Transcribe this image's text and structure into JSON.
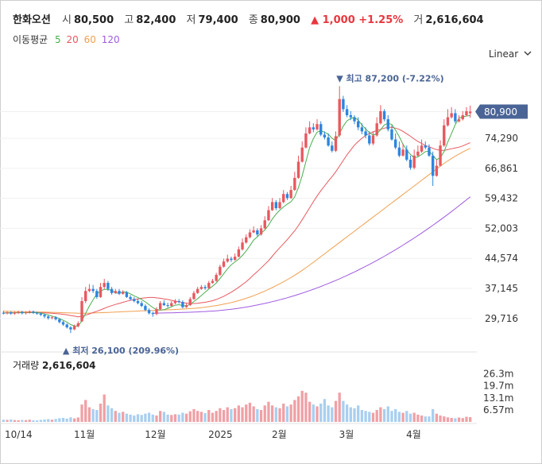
{
  "header": {
    "name": "한화오션",
    "open_label": "시",
    "open": "80,500",
    "high_label": "고",
    "high": "82,400",
    "low_label": "저",
    "low": "79,400",
    "close_label": "종",
    "close": "80,900",
    "change": "▲ 1,000 +1.25%",
    "volume_label": "거",
    "volume": "2,616,604"
  },
  "ma_legend": {
    "label": "이동평균",
    "items": [
      {
        "period": "5",
        "color": "#4caf50"
      },
      {
        "period": "20",
        "color": "#e8585f"
      },
      {
        "period": "60",
        "color": "#f0a050"
      },
      {
        "period": "120",
        "color": "#a05ce0"
      }
    ]
  },
  "scale_button": {
    "label": "Linear",
    "icon": "chevron-down-icon"
  },
  "volume_panel": {
    "label": "거래량",
    "value": "2,616,604"
  },
  "colors": {
    "up": "#e8585f",
    "down": "#2c85e0",
    "badge": "#4a6496",
    "vol_up": "#f0a0a5",
    "vol_down": "#a8cff0"
  },
  "chart_data": {
    "type": "candlestick",
    "y_ticks": [
      "80,900",
      "74,290",
      "66,861",
      "59,432",
      "52,003",
      "44,574",
      "37,145",
      "29,716"
    ],
    "y_tick_values": [
      80900,
      74290,
      66861,
      59432,
      52003,
      44574,
      37145,
      29716
    ],
    "ylim": [
      22000,
      92000
    ],
    "x_labels": [
      "10/14",
      "11월",
      "12월",
      "2025",
      "2월",
      "3월",
      "4월"
    ],
    "x_label_index": [
      2,
      21,
      40,
      57,
      74,
      92,
      110
    ],
    "volume_ticks": [
      "26.3m",
      "19.7m",
      "13.1m",
      "6.57m"
    ],
    "volume_tick_values": [
      26.3,
      19.7,
      13.1,
      6.57
    ],
    "volume_ylim": [
      0,
      30
    ],
    "annotations": {
      "max": {
        "text": "최고 87,200 (-7.22%)",
        "value": 87200,
        "index": 90
      },
      "min": {
        "text": "최저 26,100 (209.96%)",
        "value": 26100,
        "index": 18
      }
    },
    "last_price": {
      "text": "80,900",
      "value": 80900
    },
    "close": [
      31000,
      31200,
      30900,
      31100,
      31300,
      31000,
      31200,
      31400,
      31100,
      30900,
      30600,
      30200,
      29800,
      30000,
      29500,
      28800,
      28200,
      27500,
      27000,
      27800,
      28500,
      34000,
      36500,
      37000,
      36500,
      35000,
      37500,
      38500,
      37000,
      36000,
      36500,
      35800,
      36200,
      35000,
      34500,
      34000,
      33500,
      32800,
      31800,
      31000,
      30800,
      32000,
      33500,
      33000,
      32800,
      33500,
      34000,
      33800,
      32500,
      33000,
      34500,
      36000,
      37000,
      37500,
      37200,
      38500,
      39000,
      40500,
      42500,
      43800,
      44500,
      44200,
      45000,
      46800,
      48500,
      49800,
      51000,
      51500,
      50500,
      52000,
      54000,
      56500,
      58500,
      57000,
      58500,
      60500,
      59500,
      61500,
      64500,
      68500,
      72000,
      75500,
      77000,
      76500,
      77800,
      75200,
      74500,
      72500,
      71200,
      74800,
      84000,
      81500,
      80000,
      79500,
      78500,
      77000,
      76000,
      75000,
      73000,
      75000,
      78000,
      81000,
      79000,
      76500,
      74000,
      72000,
      70000,
      71500,
      69000,
      67000,
      70000,
      71000,
      72500,
      72000,
      70000,
      65000,
      67500,
      72500,
      77500,
      79500,
      80500,
      78500,
      79000,
      80000,
      81000,
      80900
    ],
    "open": [
      31100,
      31000,
      31200,
      30900,
      31100,
      31300,
      31000,
      31200,
      31400,
      31100,
      30900,
      30600,
      30200,
      29800,
      30000,
      29500,
      28800,
      28200,
      27500,
      27000,
      27800,
      29000,
      34000,
      36500,
      37000,
      36500,
      35000,
      37500,
      38500,
      37000,
      36000,
      36500,
      35800,
      36200,
      35000,
      34500,
      34000,
      33500,
      32800,
      31800,
      31000,
      30800,
      32000,
      33500,
      33000,
      32800,
      33500,
      34000,
      33800,
      32500,
      33000,
      34500,
      36000,
      37000,
      37500,
      37200,
      38500,
      39000,
      40500,
      42500,
      43800,
      44500,
      44200,
      45000,
      46800,
      48500,
      49800,
      51000,
      51500,
      50500,
      52000,
      54000,
      56500,
      58500,
      57000,
      58500,
      60500,
      59500,
      61500,
      64500,
      68500,
      72000,
      75500,
      77000,
      76500,
      77800,
      75200,
      74500,
      72500,
      71200,
      75000,
      84000,
      81500,
      80000,
      79500,
      78500,
      77000,
      76000,
      75000,
      73000,
      75000,
      78000,
      81000,
      79000,
      76500,
      74000,
      72000,
      70000,
      71500,
      69000,
      67000,
      70000,
      71000,
      72500,
      72000,
      70000,
      65000,
      67500,
      72500,
      77500,
      79500,
      80500,
      78500,
      79000,
      80000,
      80500
    ],
    "high": [
      31600,
      31500,
      31500,
      31400,
      31600,
      31600,
      31500,
      31700,
      31700,
      31400,
      31200,
      30900,
      30500,
      30300,
      30300,
      29800,
      29100,
      28500,
      27800,
      28200,
      29000,
      35000,
      37500,
      38200,
      38000,
      37000,
      38500,
      39500,
      39000,
      37500,
      37000,
      37000,
      36700,
      36500,
      35500,
      35000,
      34500,
      34000,
      33200,
      32200,
      31400,
      32500,
      34000,
      34200,
      33600,
      34000,
      34500,
      34500,
      34200,
      33500,
      35000,
      36500,
      37500,
      38000,
      38000,
      39000,
      39500,
      41000,
      43000,
      44500,
      45500,
      45000,
      45800,
      47500,
      49500,
      50500,
      51800,
      52500,
      52000,
      52800,
      55000,
      57500,
      59500,
      59000,
      59500,
      61500,
      61000,
      62500,
      66000,
      70000,
      73500,
      77000,
      78500,
      78000,
      79000,
      78500,
      76000,
      75500,
      73500,
      76000,
      87200,
      84800,
      82500,
      81000,
      80000,
      79500,
      78000,
      77000,
      76000,
      76000,
      79500,
      82500,
      81500,
      80000,
      77500,
      75500,
      73500,
      73000,
      72500,
      70000,
      71500,
      72500,
      74000,
      73500,
      72800,
      71000,
      69000,
      73800,
      79000,
      81500,
      82000,
      81500,
      80000,
      81000,
      82000,
      82400
    ],
    "low": [
      30700,
      30700,
      30600,
      30600,
      30800,
      30700,
      30700,
      30900,
      30800,
      30600,
      30300,
      29800,
      29400,
      29500,
      29200,
      28500,
      27900,
      27200,
      26100,
      26800,
      27500,
      28800,
      33500,
      36200,
      36000,
      34600,
      34800,
      37000,
      36500,
      35600,
      35800,
      35500,
      35600,
      34800,
      34200,
      33700,
      33200,
      32500,
      31500,
      30700,
      30100,
      30500,
      31700,
      32800,
      32400,
      32600,
      33200,
      33400,
      32200,
      32300,
      32800,
      34300,
      35800,
      36800,
      36800,
      37000,
      38300,
      38800,
      40200,
      42300,
      43500,
      43700,
      44000,
      44800,
      46500,
      48200,
      49500,
      50800,
      50000,
      50200,
      51800,
      53800,
      56300,
      56500,
      56800,
      58200,
      59000,
      59300,
      61300,
      64300,
      68300,
      71800,
      75300,
      75800,
      76200,
      74800,
      74000,
      72200,
      70800,
      70900,
      74600,
      80800,
      79500,
      78800,
      77800,
      76300,
      75300,
      74300,
      72500,
      72600,
      74700,
      77700,
      78500,
      76000,
      73700,
      71600,
      69600,
      69800,
      68600,
      66500,
      66600,
      69700,
      70700,
      71600,
      69700,
      62500,
      64800,
      67300,
      72200,
      77200,
      79200,
      78000,
      78200,
      78700,
      79700,
      79400
    ],
    "volume": [
      1.2,
      1.1,
      1.3,
      1.0,
      0.9,
      1.1,
      1.0,
      1.2,
      0.9,
      0.8,
      1.1,
      1.3,
      1.5,
      1.2,
      1.6,
      2.0,
      2.2,
      1.8,
      2.5,
      1.9,
      2.4,
      9.5,
      12.0,
      8.0,
      7.0,
      6.5,
      10.0,
      15.0,
      9.0,
      7.5,
      6.0,
      5.0,
      5.5,
      4.5,
      4.0,
      3.5,
      4.2,
      3.8,
      4.5,
      5.0,
      4.0,
      3.5,
      6.0,
      5.5,
      4.0,
      3.8,
      4.2,
      4.0,
      5.0,
      4.5,
      5.8,
      7.0,
      6.0,
      5.5,
      4.8,
      6.5,
      5.0,
      6.0,
      7.5,
      6.5,
      8.0,
      7.0,
      7.5,
      9.0,
      8.0,
      9.5,
      10.5,
      8.5,
      7.0,
      6.5,
      9.0,
      11.0,
      9.0,
      8.0,
      7.5,
      10.0,
      8.5,
      9.5,
      12.0,
      14.0,
      17.0,
      16.0,
      11.0,
      9.5,
      8.5,
      10.0,
      12.5,
      9.0,
      8.0,
      11.5,
      16.0,
      11.5,
      9.5,
      8.0,
      7.5,
      9.0,
      6.5,
      6.0,
      5.5,
      5.0,
      6.5,
      8.0,
      7.0,
      8.5,
      6.0,
      7.0,
      5.5,
      5.0,
      6.0,
      4.5,
      5.0,
      4.0,
      3.5,
      3.0,
      3.0,
      7.0,
      4.5,
      3.5,
      3.0,
      2.5,
      2.2,
      2.0,
      2.4,
      2.1,
      2.8,
      2.6
    ],
    "ma5": [
      31050,
      31060,
      31080,
      31100,
      31120,
      31130,
      31140,
      31180,
      31200,
      31120,
      31040,
      30800,
      30560,
      30300,
      30020,
      29660,
      29260,
      28800,
      28200,
      27860,
      27800,
      29160,
      30960,
      32760,
      34300,
      35800,
      36500,
      36900,
      36900,
      36600,
      36000,
      36000,
      36300,
      36200,
      35800,
      35300,
      34900,
      34400,
      33800,
      33100,
      32400,
      31900,
      31800,
      31900,
      32200,
      32600,
      33000,
      33100,
      32900,
      32800,
      33200,
      33900,
      34600,
      35400,
      36200,
      37000,
      37700,
      38500,
      39600,
      40800,
      42000,
      43000,
      43700,
      44400,
      45300,
      46400,
      47700,
      49100,
      49900,
      50800,
      51600,
      52800,
      54300,
      55500,
      56500,
      57300,
      58000,
      58600,
      59800,
      62100,
      65000,
      68500,
      72000,
      74200,
      75800,
      76200,
      75800,
      75300,
      74300,
      73700,
      75500,
      77300,
      78600,
      79200,
      79500,
      78800,
      77600,
      76600,
      75700,
      75100,
      75400,
      76400,
      77600,
      78000,
      77700,
      76300,
      74700,
      72800,
      71400,
      70300,
      69500,
      69700,
      70300,
      71000,
      71100,
      70100,
      69000,
      69500,
      71000,
      73400,
      75500,
      77700,
      79300,
      79600,
      79800,
      79900
    ],
    "ma20": [
      31100,
      31110,
      31120,
      31130,
      31140,
      31150,
      31150,
      31160,
      31160,
      31150,
      31130,
      31100,
      31050,
      30990,
      30920,
      30840,
      30730,
      30600,
      30440,
      30270,
      30100,
      30250,
      30520,
      30830,
      31160,
      31480,
      31830,
      32210,
      32580,
      32880,
      33170,
      33430,
      33700,
      33950,
      34200,
      34400,
      34550,
      34700,
      34800,
      34900,
      34900,
      34800,
      34700,
      34550,
      34400,
      34200,
      34000,
      33850,
      33650,
      33500,
      33400,
      33400,
      33450,
      33600,
      33700,
      33900,
      34100,
      34400,
      34800,
      35200,
      35700,
      36200,
      36800,
      37400,
      38100,
      38800,
      39600,
      40500,
      41300,
      42200,
      43100,
      44000,
      45100,
      46200,
      47200,
      48200,
      49200,
      50300,
      51400,
      52700,
      54100,
      55600,
      57100,
      58600,
      60000,
      61300,
      62500,
      63700,
      64800,
      66000,
      67400,
      68800,
      70200,
      71400,
      72600,
      73500,
      74300,
      75000,
      75500,
      75900,
      76200,
      76500,
      76800,
      77000,
      77000,
      76800,
      76500,
      76000,
      75400,
      74800,
      74100,
      73500,
      73000,
      72500,
      72200,
      71800,
      71500,
      71300,
      71300,
      71500,
      71700,
      71900,
      72100,
      72400,
      72800,
      73200
    ],
    "ma60": [
      31500,
      31480,
      31460,
      31440,
      31420,
      31400,
      31380,
      31360,
      31340,
      31320,
      31300,
      31280,
      31250,
      31220,
      31190,
      31160,
      31130,
      31100,
      31070,
      31040,
      31010,
      31000,
      31010,
      31030,
      31060,
      31090,
      31130,
      31170,
      31210,
      31250,
      31290,
      31330,
      31370,
      31410,
      31450,
      31490,
      31530,
      31570,
      31610,
      31650,
      31690,
      31730,
      31770,
      31810,
      31850,
      31890,
      31930,
      31980,
      32030,
      32080,
      32140,
      32200,
      32280,
      32380,
      32500,
      32620,
      32750,
      32900,
      33060,
      33240,
      33430,
      33640,
      33870,
      34120,
      34390,
      34680,
      35000,
      35340,
      35700,
      36080,
      36480,
      36900,
      37340,
      37800,
      38280,
      38780,
      39300,
      39840,
      40400,
      41000,
      41600,
      42250,
      42920,
      43600,
      44300,
      45000,
      45700,
      46400,
      47100,
      47800,
      48500,
      49200,
      49900,
      50600,
      51300,
      52000,
      52700,
      53400,
      54100,
      54800,
      55500,
      56200,
      56900,
      57600,
      58300,
      59000,
      59700,
      60400,
      61100,
      61800,
      62500,
      63200,
      63900,
      64600,
      65300,
      66000,
      66700,
      67400,
      68100,
      68700,
      69300,
      69900,
      70400,
      70900,
      71400,
      71800
    ],
    "ma120": [
      null,
      null,
      null,
      null,
      null,
      null,
      null,
      null,
      null,
      null,
      null,
      null,
      null,
      null,
      null,
      null,
      null,
      null,
      null,
      null,
      null,
      null,
      null,
      null,
      null,
      null,
      null,
      null,
      null,
      null,
      null,
      null,
      null,
      null,
      null,
      null,
      null,
      null,
      null,
      null,
      31000,
      31020,
      31040,
      31060,
      31080,
      31100,
      31130,
      31160,
      31190,
      31220,
      31250,
      31290,
      31330,
      31370,
      31420,
      31470,
      31530,
      31600,
      31680,
      31770,
      31870,
      31980,
      32100,
      32230,
      32370,
      32520,
      32680,
      32850,
      33030,
      33220,
      33420,
      33630,
      33850,
      34080,
      34320,
      34570,
      34830,
      35100,
      35380,
      35670,
      35970,
      36280,
      36600,
      36930,
      37270,
      37620,
      37980,
      38350,
      38730,
      39120,
      39520,
      39930,
      40350,
      40780,
      41220,
      41670,
      42130,
      42600,
      43080,
      43570,
      44070,
      44580,
      45100,
      45630,
      46170,
      46720,
      47280,
      47850,
      48430,
      49020,
      49620,
      50230,
      50850,
      51480,
      52120,
      52770,
      53430,
      54100,
      54780,
      55470,
      56170,
      56880,
      57600,
      58330,
      59070,
      59820
    ]
  }
}
